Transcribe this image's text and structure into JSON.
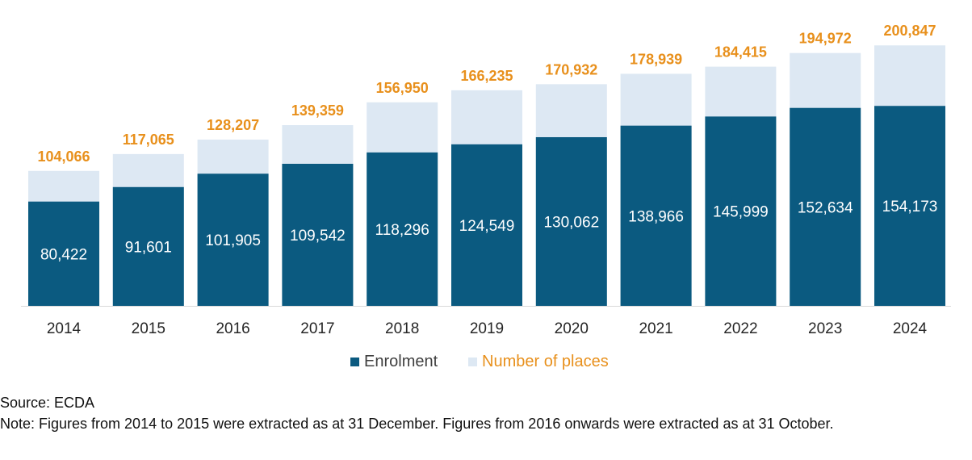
{
  "chart_data": {
    "type": "bar",
    "title": "",
    "xlabel": "",
    "ylabel": "",
    "grid": false,
    "legend_position": "bottom-center",
    "categories": [
      "2014",
      "2015",
      "2016",
      "2017",
      "2018",
      "2019",
      "2020",
      "2021",
      "2022",
      "2023",
      "2024"
    ],
    "series": [
      {
        "name": "Enrolment",
        "color": "#0b5a80",
        "values": [
          80422,
          91601,
          101905,
          109542,
          118296,
          124549,
          130062,
          138966,
          145999,
          152634,
          154173
        ],
        "labels": [
          "80,422",
          "91,601",
          "101,905",
          "109,542",
          "118,296",
          "124,549",
          "130,062",
          "138,966",
          "145,999",
          "152,634",
          "154,173"
        ]
      },
      {
        "name": "Number of places",
        "color": "#dde8f3",
        "label_color": "#e8901c",
        "values": [
          104066,
          117065,
          128207,
          139359,
          156950,
          166235,
          170932,
          178939,
          184415,
          194972,
          200847
        ],
        "labels": [
          "104,066",
          "117,065",
          "128,207",
          "139,359",
          "156,950",
          "166,235",
          "170,932",
          "178,939",
          "184,415",
          "194,972",
          "200,847"
        ]
      }
    ],
    "ylim": [
      0,
      210000
    ]
  },
  "footer": {
    "source": "Source: ECDA",
    "note": "Note: Figures from 2014 to 2015 were extracted as at 31 December. Figures from 2016 onwards were extracted as at 31 October."
  }
}
